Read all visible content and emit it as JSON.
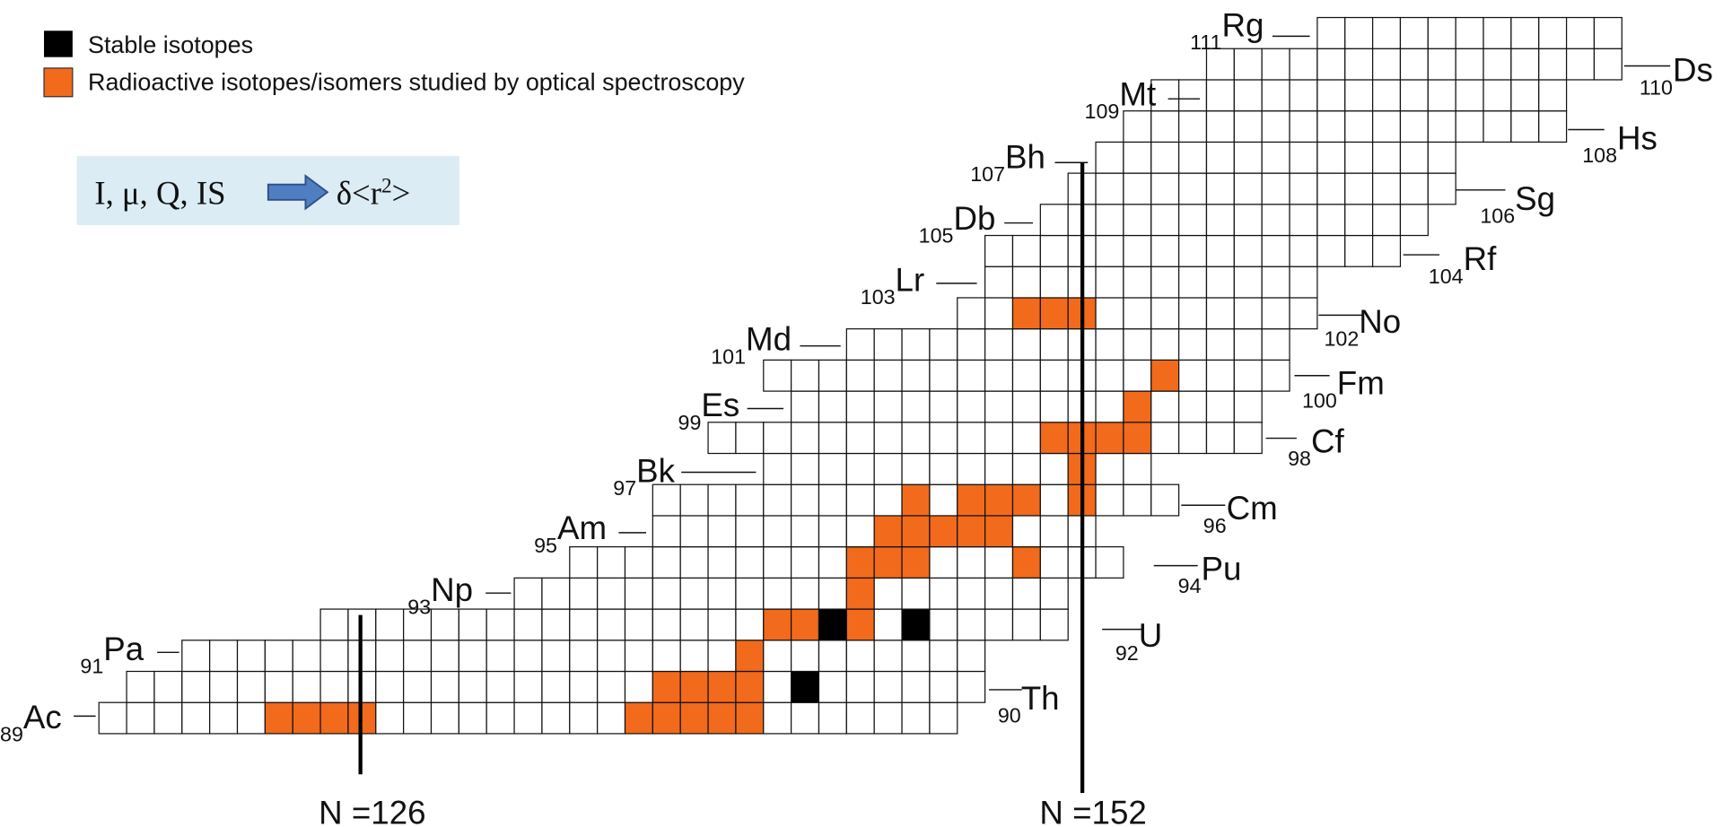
{
  "legend": [
    {
      "label": "Stable isotopes"
    },
    {
      "label": "Radioactive isotopes/isomers studied by optical spectroscopy"
    }
  ],
  "formula": {
    "quantities": "I, μ, Q, IS",
    "result": "δ<r",
    "result_sup": "2",
    "result_end": ">"
  },
  "elements": [
    {
      "z": "89",
      "symbol": "Ac"
    },
    {
      "z": "90",
      "symbol": "Th"
    },
    {
      "z": "91",
      "symbol": "Pa"
    },
    {
      "z": "92",
      "symbol": "U"
    },
    {
      "z": "93",
      "symbol": "Np"
    },
    {
      "z": "94",
      "symbol": "Pu"
    },
    {
      "z": "95",
      "symbol": "Am"
    },
    {
      "z": "96",
      "symbol": "Cm"
    },
    {
      "z": "97",
      "symbol": "Bk"
    },
    {
      "z": "98",
      "symbol": "Cf"
    },
    {
      "z": "99",
      "symbol": "Es"
    },
    {
      "z": "100",
      "symbol": "Fm"
    },
    {
      "z": "101",
      "symbol": "Md"
    },
    {
      "z": "102",
      "symbol": "No"
    },
    {
      "z": "103",
      "symbol": "Lr"
    },
    {
      "z": "104",
      "symbol": "Rf"
    },
    {
      "z": "105",
      "symbol": "Db"
    },
    {
      "z": "106",
      "symbol": "Sg"
    },
    {
      "z": "107",
      "symbol": "Bh"
    },
    {
      "z": "108",
      "symbol": "Hs"
    },
    {
      "z": "109",
      "symbol": "Mt"
    },
    {
      "z": "110",
      "symbol": "Ds"
    },
    {
      "z": "111",
      "symbol": "Rg"
    }
  ],
  "magic_lines": [
    {
      "label": "N =126"
    },
    {
      "label": "N =152"
    }
  ]
}
